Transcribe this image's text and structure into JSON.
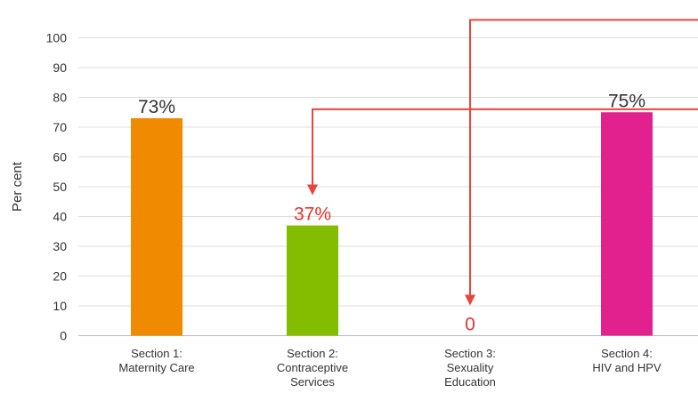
{
  "chart_data": {
    "type": "bar",
    "ylabel": "Per cent",
    "ylim": [
      0,
      100
    ],
    "yticks": [
      0,
      10,
      20,
      30,
      40,
      50,
      60,
      70,
      80,
      90,
      100
    ],
    "grid": true,
    "categories": [
      [
        "Section 1:",
        "Maternity Care"
      ],
      [
        "Section 2:",
        "Contraceptive",
        "Services"
      ],
      [
        "Section 3:",
        "Sexuality",
        "Education"
      ],
      [
        "Section 4:",
        "HIV and HPV"
      ]
    ],
    "values": [
      73,
      37,
      0,
      75
    ],
    "data_labels": [
      "73%",
      "37%",
      "0",
      "75%"
    ],
    "colors": [
      "#f08a00",
      "#84bd00",
      "#cccccc",
      "#e2218f"
    ],
    "label_colors": [
      "#333333",
      "#e8332a",
      "#e8332a",
      "#333333"
    ],
    "arrow_color": "#e8453c",
    "annotations": [
      {
        "type": "arrow",
        "target_index": 1,
        "from": "right",
        "level": 76
      },
      {
        "type": "arrow",
        "target_index": 2,
        "from": "right",
        "level": 106
      }
    ]
  }
}
